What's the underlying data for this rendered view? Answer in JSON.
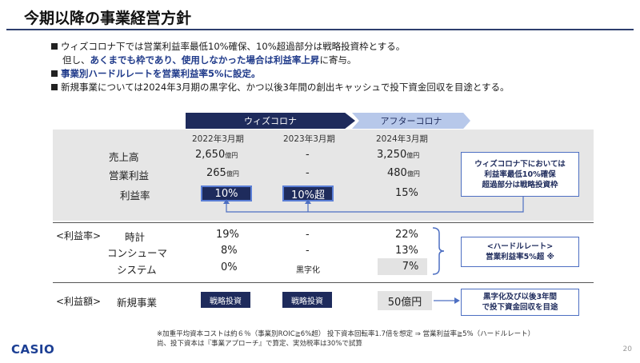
{
  "title": "今期以降の事業経営方針",
  "bullets": {
    "b1": "ウィズコロナ下では営業利益率最低10%確保、10%超過部分は戦略投資枠とする。",
    "b1_cont_pre": "但し、",
    "b1_cont_bold": "あくまでも枠であり、使用しなかった場合は利益率上昇",
    "b1_cont_post": "に寄与。",
    "b2": "事業別ハードルレートを営業利益率5%に設定。",
    "b3": "新規事業については2024年3月期の黒字化、かつ以後3年間の創出キャッシュで投下資金回収を目途とする。"
  },
  "phases": {
    "with_corona": "ウィズコロナ",
    "after_corona": "アフターコロナ"
  },
  "headers": {
    "y2022": "2022年3月期",
    "y2023": "2023年3月期",
    "y2024": "2024年3月期"
  },
  "rows": {
    "sales": {
      "label": "売上高",
      "v2022": "2,650",
      "v2023": "-",
      "v2024": "3,250",
      "unit": "億円"
    },
    "op_profit": {
      "label": "営業利益",
      "v2022": "265",
      "v2023": "-",
      "v2024": "480",
      "unit": "億円"
    },
    "margin": {
      "label": "利益率",
      "v2022": "10%",
      "v2023": "10%超",
      "v2024": "15%"
    }
  },
  "note_with": {
    "l1": "ウィズコロナ下においては",
    "l2": "利益率最低10%確保",
    "l3": "超過部分は戦略投資枠"
  },
  "margin_section": {
    "label": "<利益率>",
    "watches": {
      "label": "時計",
      "v2022": "19%",
      "v2023": "-",
      "v2024": "22%"
    },
    "consumer": {
      "label": "コンシューマ",
      "v2022": "8%",
      "v2023": "-",
      "v2024": "13%"
    },
    "system": {
      "label": "システム",
      "v2022": "0%",
      "v2023": "黒字化",
      "v2024": "7%"
    }
  },
  "hurdle_note": {
    "l1": "<ハードルレート>",
    "l2": "営業利益率5%超 ※"
  },
  "amount_section": {
    "label": "<利益額>",
    "new_business": "新規事業",
    "btn1": "戦略投資",
    "btn2": "戦略投資",
    "v2024": "50億円"
  },
  "new_biz_note": {
    "l1": "黒字化及び以後3年間",
    "l2": "で投下資金回収を目途"
  },
  "footnote": {
    "l1": "※加重平均資本コストは約６％（事業別ROIC≧6%超） 投下資本回転率1.7倍を想定 ⇒ 営業利益率≧5%（ハードルレート）",
    "l2": "尚、投下資本は『事業アプローチ』で算定、実効税率は30%で試算"
  },
  "logo": "CASIO",
  "page_number": "20",
  "colors": {
    "navy": "#1e2b5c",
    "light_blue": "#b7c8ea",
    "accent_blue": "#4d6fc2",
    "panel_gray": "#e6e6e6"
  }
}
